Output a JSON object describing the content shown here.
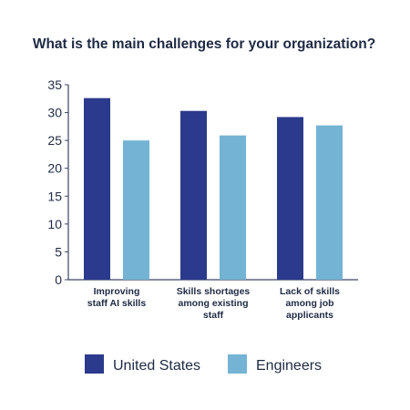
{
  "chart_data": {
    "type": "bar",
    "title": "What is the main challenges for your organization?",
    "categories": [
      [
        "Improving",
        "staff AI skills"
      ],
      [
        "Skills shortages",
        "among existing",
        "staff"
      ],
      [
        "Lack of skills",
        "among job",
        "applicants"
      ]
    ],
    "series": [
      {
        "name": "United States",
        "values": [
          32.6,
          30.3,
          29.2
        ],
        "color": "#2b3a8c"
      },
      {
        "name": "Engineers",
        "values": [
          25.0,
          25.9,
          27.7
        ],
        "color": "#74b3d3"
      }
    ],
    "ylim": [
      0,
      35
    ],
    "yticks": [
      0,
      5,
      10,
      15,
      20,
      25,
      30,
      35
    ],
    "grid": false,
    "legend_position": "bottom"
  }
}
